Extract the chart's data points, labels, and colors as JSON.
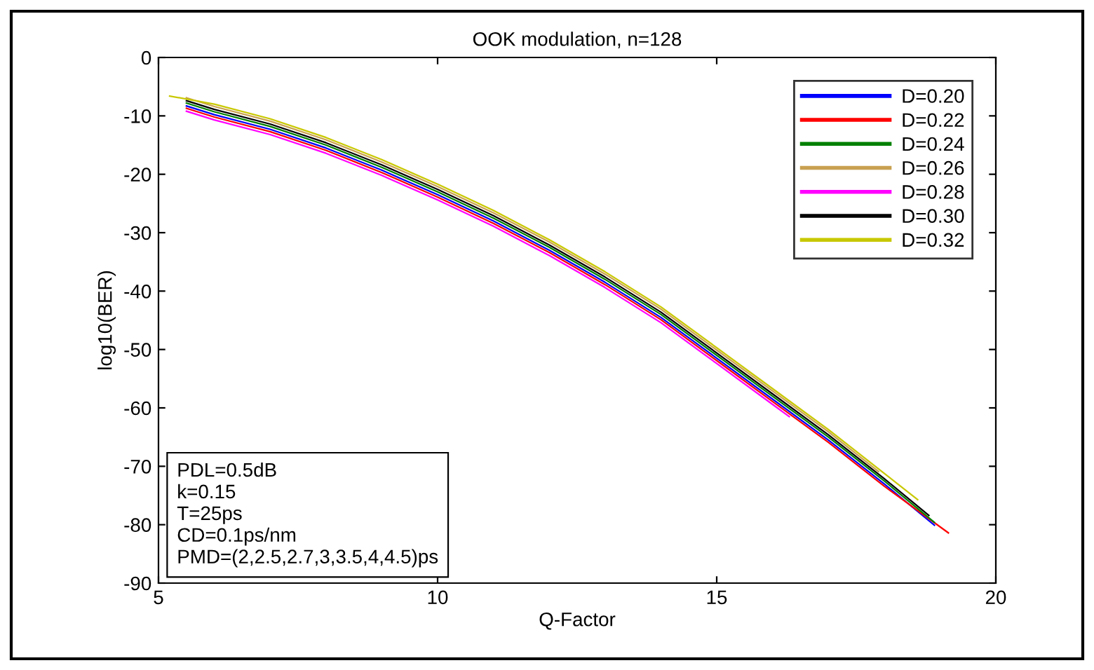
{
  "chart_data": {
    "type": "line",
    "title": "OOK modulation, n=128",
    "xlabel": "Q-Factor",
    "ylabel": "log10(BER)",
    "xlim": [
      5,
      20
    ],
    "xticks": [
      5,
      10,
      15,
      20
    ],
    "ylim": [
      -90,
      0
    ],
    "yticks": [
      -90,
      -80,
      -70,
      -60,
      -50,
      -40,
      -30,
      -20,
      -10,
      0
    ],
    "grid": false,
    "legend": "top right",
    "marker": "none",
    "line_style": "solid",
    "annotations": [
      "PDL=0.5dB\nk=0.15\nT=25ps\nCD=0.1ps/nm\nPMD=(2,2.5,2.7,3,3.5,4,4.5)ps"
    ],
    "series": [
      {
        "name": "D=0.20",
        "color": "#0000ff",
        "x": [
          5.5,
          6,
          7,
          8,
          9,
          10,
          11,
          12,
          13,
          14,
          15,
          16,
          17,
          18,
          18.9
        ],
        "values": [
          -8.3,
          -9.8,
          -12.3,
          -15.5,
          -19.3,
          -23.5,
          -28,
          -33,
          -38.5,
          -44.5,
          -51.5,
          -58.5,
          -65.5,
          -73,
          -80.1
        ]
      },
      {
        "name": "D=0.22",
        "color": "#ff0000",
        "x": [
          5.5,
          6,
          7,
          8,
          9,
          10,
          11,
          12,
          13,
          14,
          15,
          16,
          17,
          18,
          19.15
        ],
        "values": [
          -8.7,
          -10.2,
          -12.7,
          -15.9,
          -19.7,
          -23.9,
          -28.4,
          -33.4,
          -38.9,
          -44.9,
          -51.9,
          -58.9,
          -65.9,
          -73.4,
          -81.4
        ]
      },
      {
        "name": "D=0.24",
        "color": "#008000",
        "x": [
          5.5,
          6,
          7,
          8,
          9,
          10,
          11,
          12,
          13,
          14,
          15,
          16,
          17,
          18,
          18.9
        ],
        "values": [
          -7.8,
          -9.3,
          -11.8,
          -15,
          -18.8,
          -23,
          -27.5,
          -32.5,
          -38,
          -44,
          -51,
          -58,
          -65,
          -72.5,
          -79.6
        ]
      },
      {
        "name": "D=0.26",
        "color": "#c8a050",
        "x": [
          5.5,
          6,
          7,
          8,
          9,
          10,
          11,
          12,
          13,
          14,
          15,
          16,
          17,
          17.9
        ],
        "values": [
          -6.9,
          -8.4,
          -10.9,
          -14.1,
          -17.9,
          -22.1,
          -26.6,
          -31.6,
          -37.1,
          -43.1,
          -50.1,
          -57.1,
          -64.1,
          -70.9
        ]
      },
      {
        "name": "D=0.28",
        "color": "#ff00ff",
        "x": [
          5.5,
          6,
          7,
          8,
          9,
          10,
          11,
          12,
          13,
          14,
          15,
          16,
          16.3
        ],
        "values": [
          -9.2,
          -10.7,
          -13.2,
          -16.4,
          -20.2,
          -24.4,
          -28.9,
          -33.9,
          -39.4,
          -45.4,
          -52.4,
          -59.4,
          -61.5
        ]
      },
      {
        "name": "D=0.30",
        "color": "#000000",
        "x": [
          5.5,
          6,
          7,
          8,
          9,
          10,
          11,
          12,
          13,
          14,
          15,
          16,
          17,
          18,
          18.8
        ],
        "values": [
          -7.4,
          -8.9,
          -11.4,
          -14.6,
          -18.4,
          -22.6,
          -27.1,
          -32.1,
          -37.6,
          -43.6,
          -50.6,
          -57.6,
          -64.6,
          -72.1,
          -78.4
        ]
      },
      {
        "name": "D=0.32",
        "color": "#c8c800",
        "x": [
          5.2,
          6,
          7,
          8,
          9,
          10,
          11,
          12,
          13,
          14,
          15,
          16,
          17,
          18,
          18.6
        ],
        "values": [
          -6.6,
          -8,
          -10.5,
          -13.7,
          -17.5,
          -21.7,
          -26.2,
          -31.2,
          -36.7,
          -42.7,
          -49.7,
          -56.7,
          -63.7,
          -71.2,
          -75.7
        ]
      }
    ]
  }
}
